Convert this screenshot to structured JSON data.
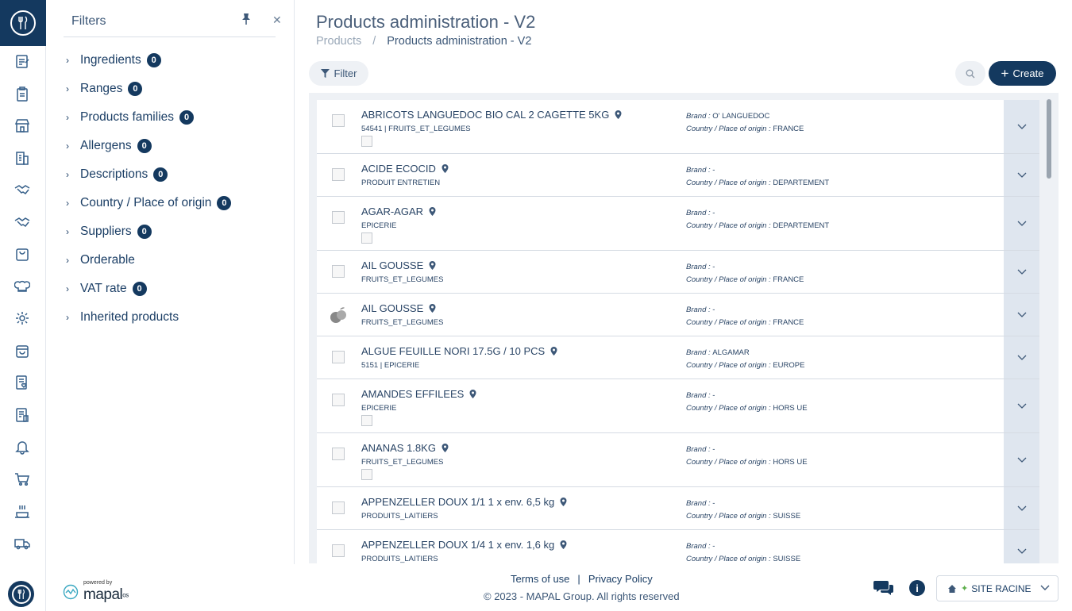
{
  "filters": {
    "title": "Filters",
    "items": [
      {
        "label": "Ingredients",
        "count": "0"
      },
      {
        "label": "Ranges",
        "count": "0"
      },
      {
        "label": "Products families",
        "count": "0"
      },
      {
        "label": "Allergens",
        "count": "0"
      },
      {
        "label": "Descriptions",
        "count": "0"
      },
      {
        "label": "Country / Place of origin",
        "count": "0"
      },
      {
        "label": "Suppliers",
        "count": "0"
      },
      {
        "label": "Orderable",
        "count": ""
      },
      {
        "label": "VAT rate",
        "count": "0"
      },
      {
        "label": "Inherited products",
        "count": ""
      }
    ]
  },
  "header": {
    "title": "Products administration - V2",
    "breadcrumb_root": "Products",
    "breadcrumb_sep": "/",
    "breadcrumb_current": "Products administration - V2"
  },
  "toolbar": {
    "filter_label": "Filter",
    "create_label": "Create"
  },
  "products": {
    "brand_label": "Brand : ",
    "origin_label": "Country / Place of origin : ",
    "rows": [
      {
        "name": "ABRICOTS LANGUEDOC BIO CAL 2 CAGETTE 5KG",
        "code": "54541 | FRUITS_ET_LEGUMES",
        "brand": "O' LANGUEDOC",
        "origin": "FRANCE",
        "subimg": true,
        "icon": "broken"
      },
      {
        "name": "ACIDE ECOCID",
        "code": "PRODUIT ENTRETIEN",
        "brand": "-",
        "origin": "DEPARTEMENT",
        "subimg": false,
        "icon": "broken"
      },
      {
        "name": "AGAR-AGAR",
        "code": "EPICERIE",
        "brand": "-",
        "origin": "DEPARTEMENT",
        "subimg": true,
        "icon": "broken"
      },
      {
        "name": "AIL GOUSSE",
        "code": "FRUITS_ET_LEGUMES",
        "brand": "-",
        "origin": "FRANCE",
        "subimg": false,
        "icon": "broken"
      },
      {
        "name": "AIL GOUSSE",
        "code": "FRUITS_ET_LEGUMES",
        "brand": "-",
        "origin": "FRANCE",
        "subimg": false,
        "icon": "fruit"
      },
      {
        "name": "ALGUE FEUILLE NORI 17.5G / 10 PCS",
        "code": "5151 | EPICERIE",
        "brand": "ALGAMAR",
        "origin": "EUROPE",
        "subimg": false,
        "icon": "broken"
      },
      {
        "name": "AMANDES EFFILEES",
        "code": "EPICERIE",
        "brand": "-",
        "origin": "HORS UE",
        "subimg": true,
        "icon": "broken"
      },
      {
        "name": "ANANAS 1.8KG",
        "code": "FRUITS_ET_LEGUMES",
        "brand": "-",
        "origin": "HORS UE",
        "subimg": true,
        "icon": "broken"
      },
      {
        "name": "APPENZELLER DOUX 1/1 1 x env. 6,5 kg",
        "code": "PRODUITS_LAITIERS",
        "brand": "-",
        "origin": "SUISSE",
        "subimg": false,
        "icon": "broken"
      },
      {
        "name": "APPENZELLER DOUX 1/4 1 x env. 1,6 kg",
        "code": "PRODUITS_LAITIERS",
        "brand": "-",
        "origin": "SUISSE",
        "subimg": false,
        "icon": "broken"
      }
    ]
  },
  "footer": {
    "powered_by": "powered by",
    "brand": "mapal",
    "brand_suffix": "os",
    "terms": "Terms of use",
    "separator": "|",
    "privacy": "Privacy Policy",
    "copyright": "© 2023 - MAPAL Group. All rights reserved",
    "site": "SITE RACINE"
  },
  "colors": {
    "navy": "#14395f",
    "row_expand_bg": "#dfe6ef",
    "list_bg": "#eef1f5"
  }
}
